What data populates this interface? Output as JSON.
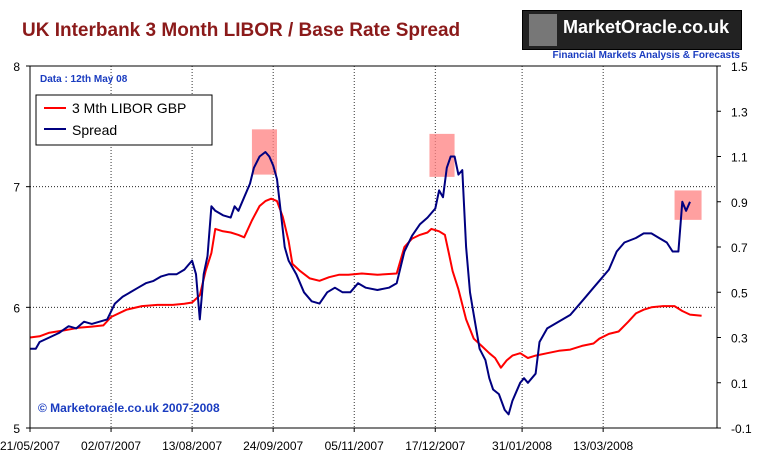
{
  "title": "UK Interbank 3 Month LIBOR / Base Rate Spread",
  "logo": {
    "brand": "MarketOracle.co.uk",
    "tagline": "Financial Markets Analysis & Forecasts"
  },
  "date_note": "Data : 12th May  08",
  "copyright": "© Marketoracle.co.uk 2007-2008",
  "colors": {
    "libor": "#ff0000",
    "spread": "#000080",
    "highlight": "#ff8080",
    "title": "#8b1a1a",
    "date_note": "#1a3cc0"
  },
  "chart_data": {
    "type": "line",
    "title": "UK Interbank 3 Month LIBOR / Base Rate Spread",
    "x_ticks": [
      "21/05/2007",
      "02/07/2007",
      "13/08/2007",
      "24/09/2007",
      "05/11/2007",
      "17/12/2007",
      "31/01/2008",
      "13/03/2008"
    ],
    "x_tick_days": [
      0,
      42,
      84,
      126,
      168,
      210,
      255,
      297
    ],
    "x_range_days": [
      0,
      356
    ],
    "y_left": {
      "ticks": [
        "5",
        "6",
        "7",
        "8"
      ],
      "range": [
        5,
        8
      ]
    },
    "y_right": {
      "ticks": [
        "-0.1",
        "0.1",
        "0.3",
        "0.5",
        "0.7",
        "0.9",
        "1.1",
        "1.3",
        "1.5"
      ],
      "range": [
        -0.1,
        1.5
      ]
    },
    "grid": true,
    "legend_position": "top-left",
    "series": [
      {
        "name": "3 Mth LIBOR GBP",
        "axis": "left",
        "points": [
          [
            0,
            5.75
          ],
          [
            5,
            5.76
          ],
          [
            10,
            5.79
          ],
          [
            18,
            5.81
          ],
          [
            25,
            5.83
          ],
          [
            32,
            5.84
          ],
          [
            38,
            5.85
          ],
          [
            42,
            5.92
          ],
          [
            50,
            5.98
          ],
          [
            58,
            6.01
          ],
          [
            66,
            6.02
          ],
          [
            74,
            6.02
          ],
          [
            80,
            6.03
          ],
          [
            84,
            6.04
          ],
          [
            88,
            6.1
          ],
          [
            91,
            6.3
          ],
          [
            94,
            6.45
          ],
          [
            96,
            6.65
          ],
          [
            100,
            6.63
          ],
          [
            104,
            6.62
          ],
          [
            108,
            6.6
          ],
          [
            111,
            6.58
          ],
          [
            115,
            6.72
          ],
          [
            119,
            6.84
          ],
          [
            122,
            6.88
          ],
          [
            125,
            6.9
          ],
          [
            128,
            6.88
          ],
          [
            131,
            6.75
          ],
          [
            134,
            6.55
          ],
          [
            136,
            6.36
          ],
          [
            140,
            6.3
          ],
          [
            145,
            6.24
          ],
          [
            150,
            6.22
          ],
          [
            155,
            6.25
          ],
          [
            160,
            6.27
          ],
          [
            165,
            6.27
          ],
          [
            172,
            6.28
          ],
          [
            180,
            6.27
          ],
          [
            190,
            6.28
          ],
          [
            194,
            6.5
          ],
          [
            198,
            6.57
          ],
          [
            202,
            6.6
          ],
          [
            206,
            6.62
          ],
          [
            208,
            6.65
          ],
          [
            212,
            6.63
          ],
          [
            215,
            6.6
          ],
          [
            217,
            6.45
          ],
          [
            219,
            6.3
          ],
          [
            222,
            6.15
          ],
          [
            226,
            5.9
          ],
          [
            230,
            5.74
          ],
          [
            234,
            5.68
          ],
          [
            238,
            5.62
          ],
          [
            241,
            5.58
          ],
          [
            244,
            5.5
          ],
          [
            247,
            5.56
          ],
          [
            250,
            5.6
          ],
          [
            254,
            5.62
          ],
          [
            258,
            5.58
          ],
          [
            262,
            5.6
          ],
          [
            268,
            5.62
          ],
          [
            274,
            5.64
          ],
          [
            280,
            5.65
          ],
          [
            286,
            5.68
          ],
          [
            292,
            5.7
          ],
          [
            295,
            5.74
          ],
          [
            300,
            5.78
          ],
          [
            305,
            5.8
          ],
          [
            310,
            5.88
          ],
          [
            314,
            5.95
          ],
          [
            318,
            5.98
          ],
          [
            322,
            6.0
          ],
          [
            328,
            6.01
          ],
          [
            334,
            6.01
          ],
          [
            338,
            5.97
          ],
          [
            342,
            5.94
          ],
          [
            348,
            5.93
          ]
        ]
      },
      {
        "name": "Spread",
        "axis": "right",
        "points": [
          [
            0,
            0.25
          ],
          [
            3,
            0.25
          ],
          [
            5,
            0.28
          ],
          [
            10,
            0.3
          ],
          [
            15,
            0.32
          ],
          [
            20,
            0.35
          ],
          [
            24,
            0.34
          ],
          [
            28,
            0.37
          ],
          [
            32,
            0.36
          ],
          [
            36,
            0.37
          ],
          [
            40,
            0.38
          ],
          [
            44,
            0.45
          ],
          [
            48,
            0.48
          ],
          [
            52,
            0.5
          ],
          [
            56,
            0.52
          ],
          [
            60,
            0.54
          ],
          [
            64,
            0.55
          ],
          [
            68,
            0.57
          ],
          [
            72,
            0.58
          ],
          [
            76,
            0.58
          ],
          [
            80,
            0.6
          ],
          [
            82,
            0.62
          ],
          [
            84,
            0.64
          ],
          [
            86,
            0.58
          ],
          [
            88,
            0.38
          ],
          [
            90,
            0.58
          ],
          [
            92,
            0.66
          ],
          [
            94,
            0.88
          ],
          [
            96,
            0.86
          ],
          [
            100,
            0.84
          ],
          [
            104,
            0.83
          ],
          [
            106,
            0.88
          ],
          [
            108,
            0.86
          ],
          [
            111,
            0.92
          ],
          [
            114,
            0.98
          ],
          [
            116,
            1.05
          ],
          [
            119,
            1.1
          ],
          [
            122,
            1.12
          ],
          [
            124,
            1.1
          ],
          [
            126,
            1.06
          ],
          [
            128,
            1.0
          ],
          [
            130,
            0.85
          ],
          [
            132,
            0.7
          ],
          [
            134,
            0.64
          ],
          [
            138,
            0.58
          ],
          [
            142,
            0.5
          ],
          [
            146,
            0.46
          ],
          [
            150,
            0.45
          ],
          [
            154,
            0.5
          ],
          [
            158,
            0.52
          ],
          [
            162,
            0.5
          ],
          [
            166,
            0.5
          ],
          [
            170,
            0.54
          ],
          [
            174,
            0.52
          ],
          [
            180,
            0.51
          ],
          [
            186,
            0.52
          ],
          [
            190,
            0.54
          ],
          [
            194,
            0.68
          ],
          [
            198,
            0.75
          ],
          [
            202,
            0.8
          ],
          [
            206,
            0.83
          ],
          [
            210,
            0.87
          ],
          [
            212,
            0.95
          ],
          [
            214,
            0.92
          ],
          [
            216,
            1.05
          ],
          [
            218,
            1.1
          ],
          [
            220,
            1.1
          ],
          [
            222,
            1.02
          ],
          [
            224,
            1.04
          ],
          [
            226,
            0.7
          ],
          [
            228,
            0.5
          ],
          [
            230,
            0.4
          ],
          [
            233,
            0.25
          ],
          [
            236,
            0.2
          ],
          [
            238,
            0.12
          ],
          [
            240,
            0.07
          ],
          [
            243,
            0.05
          ],
          [
            246,
            -0.02
          ],
          [
            248,
            -0.04
          ],
          [
            250,
            0.02
          ],
          [
            252,
            0.06
          ],
          [
            254,
            0.1
          ],
          [
            256,
            0.12
          ],
          [
            258,
            0.1
          ],
          [
            262,
            0.14
          ],
          [
            264,
            0.28
          ],
          [
            268,
            0.34
          ],
          [
            272,
            0.36
          ],
          [
            276,
            0.38
          ],
          [
            280,
            0.4
          ],
          [
            284,
            0.44
          ],
          [
            288,
            0.48
          ],
          [
            292,
            0.52
          ],
          [
            296,
            0.56
          ],
          [
            300,
            0.6
          ],
          [
            304,
            0.68
          ],
          [
            308,
            0.72
          ],
          [
            314,
            0.74
          ],
          [
            318,
            0.76
          ],
          [
            322,
            0.76
          ],
          [
            326,
            0.74
          ],
          [
            330,
            0.72
          ],
          [
            333,
            0.68
          ],
          [
            336,
            0.68
          ],
          [
            338,
            0.9
          ],
          [
            340,
            0.86
          ],
          [
            342,
            0.9
          ]
        ]
      }
    ],
    "highlights": [
      {
        "x": [
          115,
          128
        ],
        "y": [
          1.02,
          1.22
        ]
      },
      {
        "x": [
          207,
          220
        ],
        "y": [
          1.01,
          1.2
        ]
      },
      {
        "x": [
          334,
          348
        ],
        "y": [
          0.82,
          0.95
        ]
      }
    ]
  }
}
